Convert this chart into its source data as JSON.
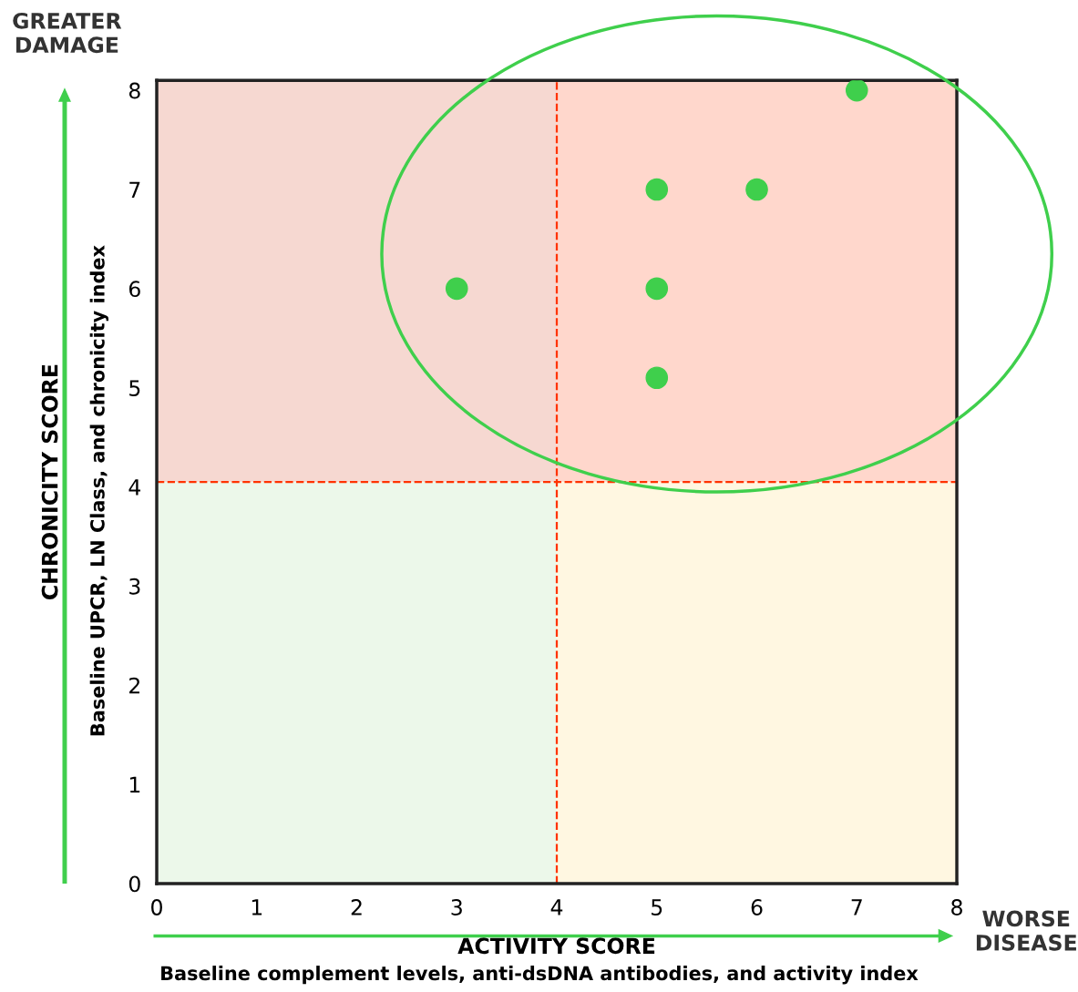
{
  "chart_data": {
    "type": "scatter",
    "xlabel": "ACTIVITY SCORE",
    "ylabel": "CHRONICITY SCORE",
    "x": [
      3,
      5,
      5,
      5,
      6,
      7
    ],
    "series": [
      {
        "color": "#3fcf4c",
        "values": [
          6,
          7,
          6,
          5.1,
          7,
          8
        ]
      }
    ],
    "marker": "circle",
    "xlim": [
      0,
      8
    ],
    "ylim": [
      0,
      8.1
    ],
    "xticks": [
      0,
      1,
      2,
      3,
      4,
      5,
      6,
      7,
      8
    ],
    "yticks": [
      0,
      1,
      2,
      3,
      4,
      5,
      6,
      7,
      8
    ],
    "grid": false,
    "ref_lines": [
      {
        "axis": "x",
        "value": 4,
        "color": "#ff3300",
        "line_style": "dashed"
      },
      {
        "axis": "y",
        "value": 4.05,
        "color": "#ff3300",
        "line_style": "dashed"
      }
    ],
    "bands": [
      {
        "axis": "x",
        "from": 0,
        "to": 4,
        "color": "#ecf8ea"
      },
      {
        "axis": "x",
        "from": 4,
        "to": 8,
        "color": "#fff7e1"
      },
      {
        "axis": "y",
        "from": 4.05,
        "to": 8.1,
        "color": "#ffb8b8"
      }
    ],
    "annotations": [
      "Baseline complement levels, anti-dsDNA antibodies, and activity index",
      "Baseline UPCR, LN Class, and chronicity index",
      "WORSE\nDISEASE",
      "GREATER\nDAMAGE"
    ]
  }
}
